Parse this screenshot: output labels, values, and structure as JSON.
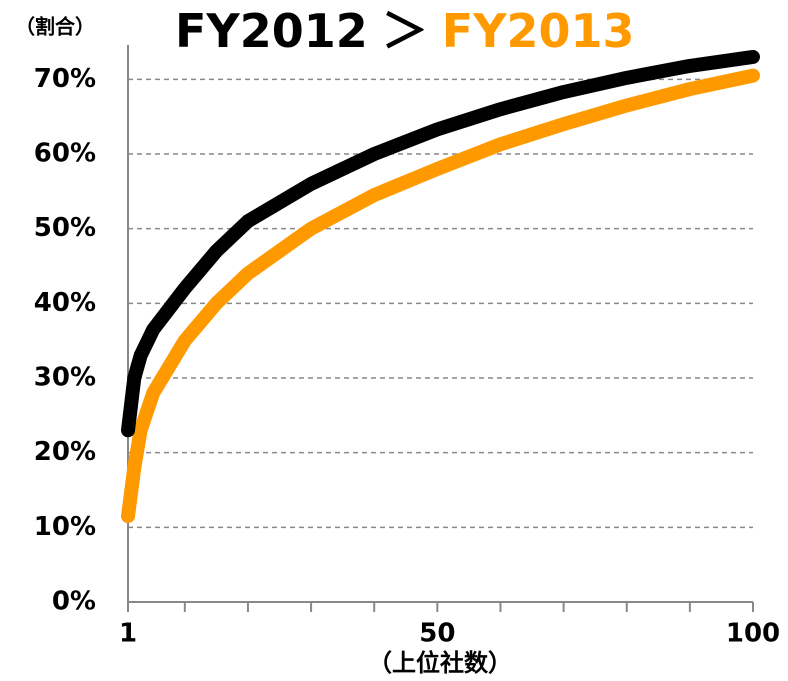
{
  "chart_data": {
    "type": "line",
    "title_separator": "＞",
    "y_label": "（割合）",
    "x_label": "（上位社数）",
    "x": [
      1,
      2,
      3,
      5,
      10,
      15,
      20,
      30,
      40,
      50,
      60,
      70,
      80,
      90,
      100
    ],
    "series": [
      {
        "name": "FY2012",
        "color": "#000000",
        "values": [
          23,
          30,
          33,
          36.5,
          42,
          47,
          51,
          56,
          60,
          63.3,
          66,
          68.3,
          70.2,
          71.8,
          73
        ]
      },
      {
        "name": "FY2013",
        "color": "#ff9900",
        "values": [
          11.5,
          18,
          23,
          28,
          35,
          40,
          44,
          50,
          54.5,
          58,
          61.3,
          64,
          66.5,
          68.7,
          70.5
        ]
      }
    ],
    "xlim": [
      1,
      100
    ],
    "xticks": [
      1,
      50,
      100
    ],
    "xminorticks": [
      10,
      20,
      30,
      40,
      60,
      70,
      80,
      90
    ],
    "ylim": [
      0,
      75
    ],
    "yticks": [
      {
        "value": 0,
        "label": "0%"
      },
      {
        "value": 10,
        "label": "10%"
      },
      {
        "value": 20,
        "label": "20%"
      },
      {
        "value": 30,
        "label": "30%"
      },
      {
        "value": 40,
        "label": "40%"
      },
      {
        "value": 50,
        "label": "50%"
      },
      {
        "value": 60,
        "label": "60%"
      },
      {
        "value": 70,
        "label": "70%"
      }
    ],
    "grid": true
  }
}
